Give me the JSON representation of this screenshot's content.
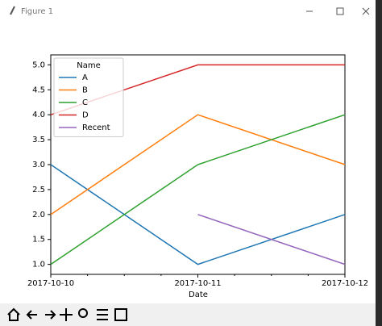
{
  "window": {
    "title": "Figure 1"
  },
  "chart_data": {
    "type": "line",
    "x": [
      "2017-10-10",
      "2017-10-11",
      "2017-10-12"
    ],
    "x_label": "Date",
    "series": [
      {
        "name": "A",
        "color": "#1f77b4",
        "values": [
          3,
          1,
          2
        ]
      },
      {
        "name": "B",
        "color": "#ff7f0e",
        "values": [
          2,
          4,
          3
        ]
      },
      {
        "name": "C",
        "color": "#2ca02c",
        "values": [
          1,
          3,
          4
        ]
      },
      {
        "name": "D",
        "color": "#d62728",
        "values": [
          4,
          5,
          5
        ]
      },
      {
        "name": "Recent",
        "color": "#9467bd",
        "values": [
          null,
          2,
          1
        ]
      }
    ],
    "legend_title": "Name",
    "legend": "upper left",
    "ylim": [
      0.8,
      5.2
    ],
    "yticks": [
      {
        "value": 1,
        "label": "1.0"
      },
      {
        "value": 1.5,
        "label": "1.5"
      },
      {
        "value": 2,
        "label": "2.0"
      },
      {
        "value": 2.5,
        "label": "2.5"
      },
      {
        "value": 3,
        "label": "3.0"
      },
      {
        "value": 3.5,
        "label": "3.5"
      },
      {
        "value": 4,
        "label": "4.0"
      },
      {
        "value": 4.5,
        "label": "4.5"
      },
      {
        "value": 5,
        "label": "5.0"
      }
    ],
    "grid": false
  }
}
